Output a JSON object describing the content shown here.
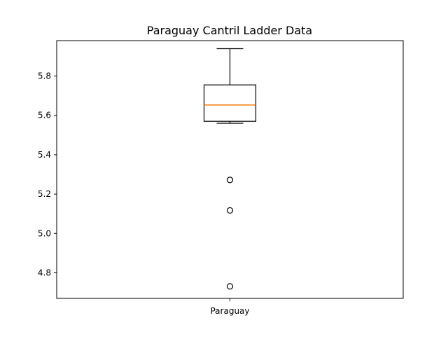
{
  "chart_data": {
    "type": "box",
    "title": "Paraguay Cantril Ladder Data",
    "xlabel": "",
    "ylabel": "",
    "categories": [
      "Paraguay"
    ],
    "boxes": [
      {
        "label": "Paraguay",
        "whisker_low": 5.56,
        "q1": 5.57,
        "median": 5.653,
        "q3": 5.755,
        "whisker_high": 5.939,
        "fliers": [
          5.272,
          5.117,
          4.731
        ]
      }
    ],
    "y_ticks": [
      4.8,
      5.0,
      5.2,
      5.4,
      5.6,
      5.8
    ],
    "y_tick_labels": [
      "4.8",
      "5.0",
      "5.2",
      "5.4",
      "5.6",
      "5.8"
    ],
    "ylim": [
      4.67,
      5.98
    ],
    "grid": false,
    "colors": {
      "box": "#000000",
      "median": "#ff7f0e",
      "flier": "#000000",
      "axes": "#000000"
    }
  }
}
